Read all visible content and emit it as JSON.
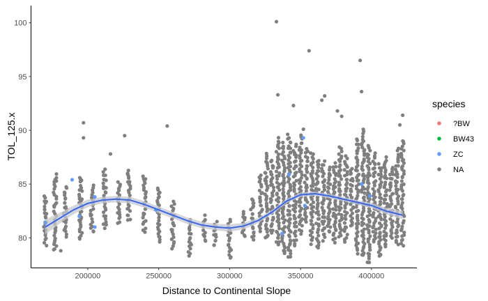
{
  "chart_data": {
    "type": "scatter",
    "xlabel": "Distance to Continental Slope",
    "ylabel": "TOL_125.x",
    "xlim": [
      160000,
      432000
    ],
    "ylim": [
      77.2,
      101.6
    ],
    "x_ticks": [
      200000,
      250000,
      300000,
      350000,
      400000
    ],
    "x_tick_labels": [
      "200000",
      "250000",
      "300000",
      "350000",
      "400000"
    ],
    "y_ticks": [
      80,
      85,
      90,
      95,
      100
    ],
    "y_tick_labels": [
      "80",
      "85",
      "90",
      "95",
      "100"
    ],
    "grid": false,
    "legend": {
      "title": "species",
      "placement": "right",
      "entries": [
        {
          "label": "?BW",
          "color": "#F8766D"
        },
        {
          "label": "BW43",
          "color": "#00BA38"
        },
        {
          "label": "ZC",
          "color": "#619CFF"
        },
        {
          "label": "NA",
          "color": "#7F7F7F"
        }
      ]
    },
    "series": [
      {
        "name": "ZC",
        "color": "#619CFF",
        "points": [
          [
            170000,
            81.4
          ],
          [
            189000,
            85.4
          ],
          [
            194000,
            82.0
          ],
          [
            205000,
            83.8
          ],
          [
            205000,
            81.0
          ],
          [
            248000,
            82.6
          ],
          [
            337000,
            80.4
          ],
          [
            342000,
            85.9
          ],
          [
            352000,
            89.3
          ],
          [
            353000,
            83.0
          ],
          [
            393000,
            85.0
          ],
          [
            399000,
            83.9
          ]
        ]
      },
      {
        "name": "NA",
        "color": "#7F7F7F",
        "columns": [
          [
            170000,
            79.4,
            83.9
          ],
          [
            177000,
            78.8,
            85.9
          ],
          [
            184000,
            80.2,
            84.7
          ],
          [
            195000,
            79.8,
            85.7
          ],
          [
            203000,
            80.5,
            84.8
          ],
          [
            212000,
            80.9,
            86.3
          ],
          [
            222000,
            81.3,
            85.1
          ],
          [
            229000,
            81.6,
            86.3
          ],
          [
            240000,
            80.6,
            85.8
          ],
          [
            250000,
            79.6,
            84.7
          ],
          [
            260000,
            79.0,
            83.3
          ],
          [
            272000,
            78.3,
            81.7
          ],
          [
            282000,
            79.6,
            82.0
          ],
          [
            290000,
            79.2,
            81.4
          ],
          [
            300000,
            78.1,
            81.6
          ],
          [
            310000,
            80.1,
            82.4
          ],
          [
            316000,
            79.8,
            83.7
          ],
          [
            322000,
            80.7,
            85.9
          ],
          [
            326000,
            79.9,
            87.8
          ],
          [
            330000,
            80.4,
            87.2
          ],
          [
            334000,
            79.3,
            89.2
          ],
          [
            338000,
            78.5,
            88.8
          ],
          [
            342000,
            78.1,
            89.6
          ],
          [
            346000,
            79.3,
            88.6
          ],
          [
            350000,
            80.4,
            89.5
          ],
          [
            354000,
            81.4,
            88.2
          ],
          [
            358000,
            79.5,
            87.9
          ],
          [
            362000,
            79.0,
            87.3
          ],
          [
            366000,
            79.8,
            87.1
          ],
          [
            370000,
            80.5,
            86.5
          ],
          [
            374000,
            79.6,
            86.9
          ],
          [
            378000,
            80.1,
            88.4
          ],
          [
            382000,
            79.7,
            87.5
          ],
          [
            386000,
            81.1,
            86.4
          ],
          [
            390000,
            78.6,
            89.2
          ],
          [
            394000,
            78.3,
            90.0
          ],
          [
            398000,
            77.6,
            88.5
          ],
          [
            402000,
            79.6,
            87.8
          ],
          [
            406000,
            78.2,
            86.8
          ],
          [
            410000,
            79.1,
            87.4
          ],
          [
            414000,
            80.0,
            86.6
          ],
          [
            418000,
            79.4,
            88.2
          ],
          [
            422000,
            79.3,
            89.1
          ]
        ],
        "outliers": [
          [
            181000,
            78.8
          ],
          [
            197000,
            90.7
          ],
          [
            197000,
            89.3
          ],
          [
            216000,
            87.8
          ],
          [
            226000,
            89.5
          ],
          [
            256000,
            90.4
          ],
          [
            333000,
            100.1
          ],
          [
            334000,
            93.3
          ],
          [
            352000,
            90.1
          ],
          [
            356000,
            97.4
          ],
          [
            345000,
            92.3
          ],
          [
            365000,
            92.8
          ],
          [
            367000,
            93.2
          ],
          [
            376000,
            91.8
          ],
          [
            392000,
            96.5
          ],
          [
            393000,
            93.6
          ],
          [
            422000,
            91.4
          ],
          [
            420000,
            90.5
          ],
          [
            379000,
            91.3
          ]
        ]
      }
    ],
    "smooth": {
      "color": "#3366FF",
      "ribbon_color": "#C8C8C8",
      "method": "loess",
      "points": [
        [
          170000,
          81.0,
          0.7
        ],
        [
          180000,
          81.8,
          0.5
        ],
        [
          190000,
          82.6,
          0.4
        ],
        [
          200000,
          83.2,
          0.35
        ],
        [
          210000,
          83.5,
          0.3
        ],
        [
          220000,
          83.6,
          0.3
        ],
        [
          230000,
          83.5,
          0.3
        ],
        [
          240000,
          83.1,
          0.3
        ],
        [
          250000,
          82.6,
          0.3
        ],
        [
          260000,
          82.1,
          0.3
        ],
        [
          270000,
          81.6,
          0.3
        ],
        [
          280000,
          81.2,
          0.3
        ],
        [
          290000,
          81.0,
          0.3
        ],
        [
          300000,
          80.9,
          0.35
        ],
        [
          310000,
          81.1,
          0.3
        ],
        [
          320000,
          81.6,
          0.25
        ],
        [
          330000,
          82.4,
          0.2
        ],
        [
          340000,
          83.4,
          0.2
        ],
        [
          350000,
          84.0,
          0.2
        ],
        [
          360000,
          84.1,
          0.2
        ],
        [
          370000,
          83.9,
          0.2
        ],
        [
          380000,
          83.6,
          0.2
        ],
        [
          390000,
          83.3,
          0.2
        ],
        [
          400000,
          83.0,
          0.25
        ],
        [
          410000,
          82.5,
          0.3
        ],
        [
          422000,
          82.1,
          0.4
        ]
      ]
    }
  }
}
